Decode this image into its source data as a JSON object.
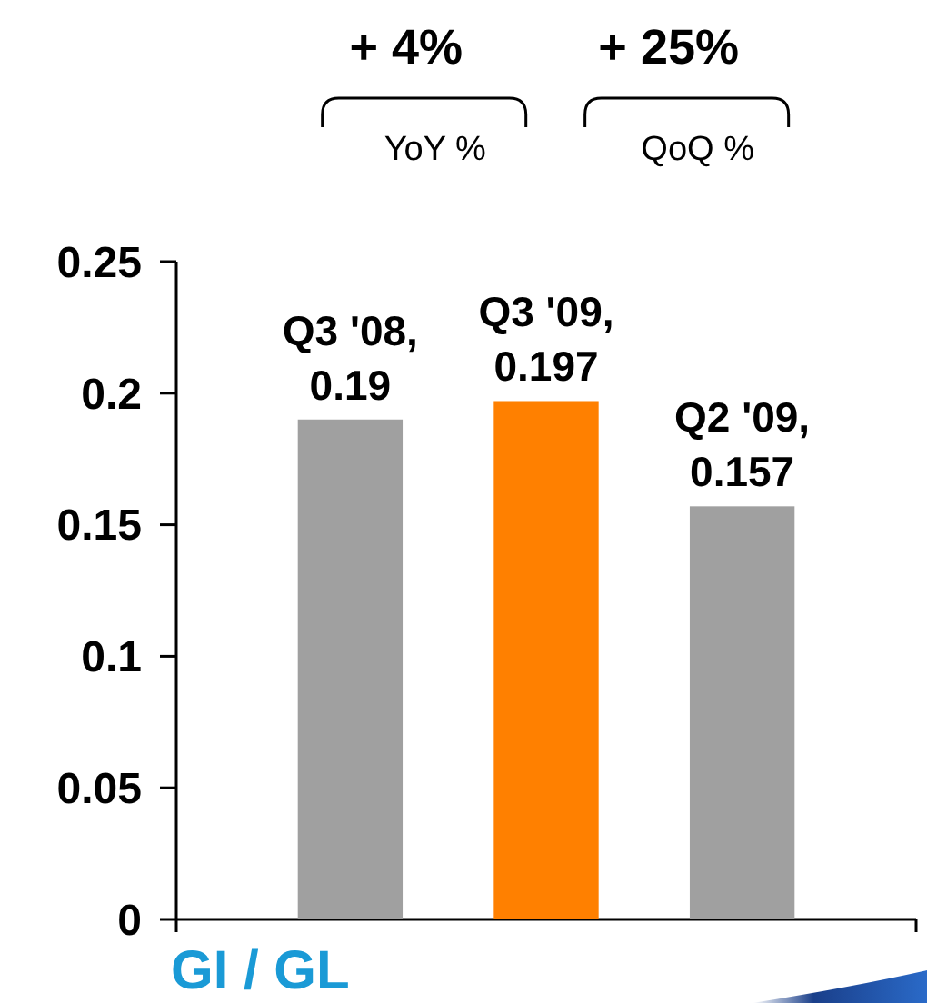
{
  "chart_data": {
    "type": "bar",
    "title": "GI / GL",
    "annotations": [
      "+ 4%",
      "YoY %",
      "+ 25%",
      "QoQ %"
    ],
    "categories": [
      null
    ],
    "series": [
      {
        "name": "Q3 '08,",
        "color": "#a0a0a0",
        "values": [
          0.19
        ]
      },
      {
        "name": "Q3 '09,",
        "color": "#ff8000",
        "values": [
          0.197
        ]
      },
      {
        "name": "Q2 '09,",
        "color": "#a0a0a0",
        "values": [
          0.157
        ]
      }
    ],
    "ylim": [
      0,
      0.25
    ],
    "yticks": [
      0,
      0.05,
      0.1,
      0.15,
      0.2,
      0.25
    ],
    "data_labels": true
  }
}
